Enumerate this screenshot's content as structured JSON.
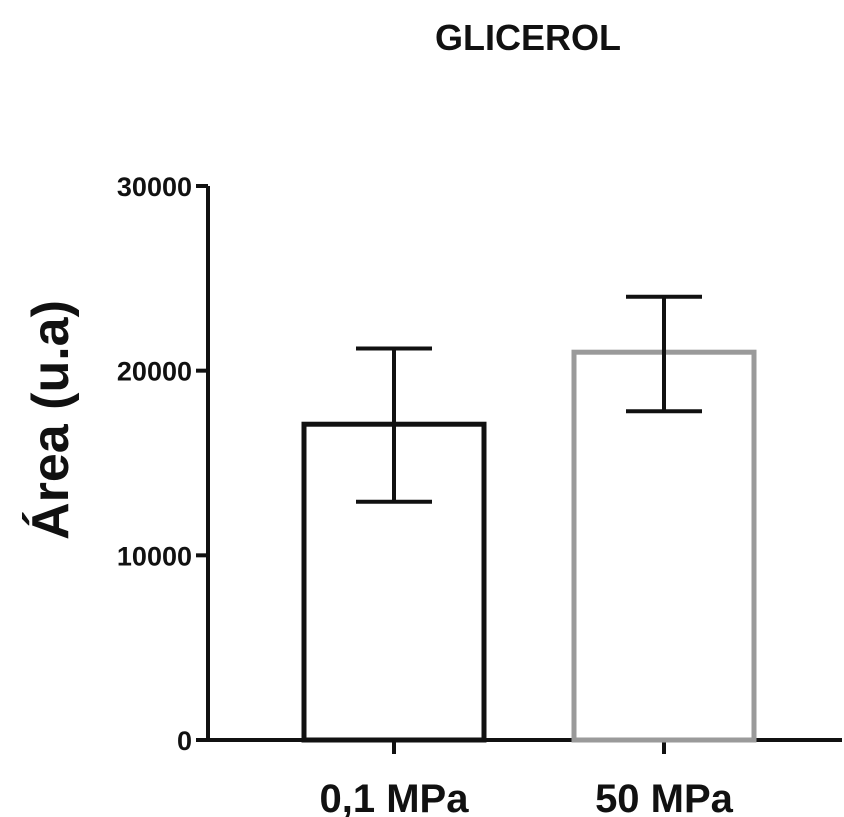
{
  "chart_data": {
    "type": "bar",
    "title": "GLICEROL",
    "xlabel": "",
    "ylabel": "Área (u.a)",
    "categories": [
      "0,1 MPa",
      "50 MPa"
    ],
    "values": [
      17100,
      21000
    ],
    "error_low": [
      12900,
      17800
    ],
    "error_high": [
      21200,
      24000
    ],
    "ylim": [
      0,
      30000
    ],
    "yticks": [
      0,
      10000,
      20000,
      30000
    ],
    "ytick_labels": [
      "0",
      "10000",
      "20000",
      "30000"
    ],
    "bar_fill": "#ffffff",
    "bar_edge_colors": [
      "#111111",
      "#9a9a9a"
    ],
    "grid": false,
    "legend": "none"
  }
}
